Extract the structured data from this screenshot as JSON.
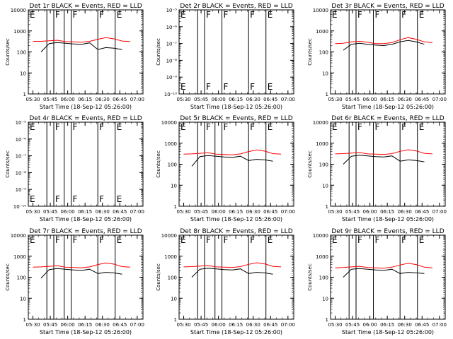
{
  "figure": {
    "xticks": [
      "05:30",
      "05:45",
      "06:00",
      "06:15",
      "06:30",
      "06:45",
      "07:00"
    ],
    "xlabel": "Start Time (18-Sep-12 05:26:00)",
    "ylabel": "Counts/sec",
    "colors": {
      "events": "#000000",
      "lld": "#ff0000",
      "axes": "#000000"
    }
  },
  "chart_data": [
    {
      "type": "line",
      "title": "Det 1r BLACK = Events, RED = LLD",
      "xlabel": "Start Time (18-Sep-12 05:26:00)",
      "ylabel": "Counts/sec",
      "scale": "log",
      "ylim": [
        1,
        10000
      ],
      "yticks": [
        "1",
        "10",
        "100",
        "1000",
        "10000"
      ],
      "x": [
        "05:30",
        "05:37",
        "05:44",
        "05:51",
        "05:58",
        "06:05",
        "06:12",
        "06:19",
        "06:26",
        "06:33",
        "06:40",
        "06:47",
        "06:54"
      ],
      "series": [
        {
          "name": "BLACK = Events",
          "values": [
            null,
            100,
            250,
            280,
            260,
            240,
            230,
            270,
            130,
            160,
            150,
            130,
            null
          ]
        },
        {
          "name": "RED = LLD",
          "values": [
            320,
            320,
            340,
            360,
            310,
            300,
            290,
            320,
            400,
            480,
            420,
            330,
            310
          ]
        }
      ],
      "markers": [
        {
          "x": "05:26",
          "label": "E"
        },
        {
          "x": "05:42",
          "label": ""
        },
        {
          "x": "05:48",
          "label": "F"
        },
        {
          "x": "05:57",
          "label": ""
        },
        {
          "x": "06:03",
          "label": "F"
        },
        {
          "x": "06:26",
          "label": "F"
        },
        {
          "x": "06:41",
          "label": "E"
        }
      ]
    },
    {
      "type": "line",
      "title": "Det 2r BLACK = Events, RED = LLD",
      "xlabel": "Start Time (18-Sep-12 05:26:00)",
      "ylabel": "Counts/sec",
      "scale": "log",
      "ylim": [
        1e-10,
        1e-05
      ],
      "yticks": [
        "10⁻¹⁰",
        "10⁻⁹",
        "10⁻⁸",
        "10⁻⁷",
        "10⁻⁶",
        "10⁻⁵"
      ],
      "series": [],
      "markers": [
        {
          "x": "05:26",
          "label": "E"
        },
        {
          "x": "05:42",
          "label": ""
        },
        {
          "x": "05:48",
          "label": "F"
        },
        {
          "x": "06:03",
          "label": "F"
        },
        {
          "x": "06:26",
          "label": "F"
        },
        {
          "x": "06:41",
          "label": "E"
        }
      ]
    },
    {
      "type": "line",
      "title": "Det 3r BLACK = Events, RED = LLD",
      "xlabel": "Start Time (18-Sep-12 05:26:00)",
      "ylabel": "Counts/sec",
      "scale": "log",
      "ylim": [
        1,
        10000
      ],
      "yticks": [
        "1",
        "10",
        "100",
        "1000",
        "10000"
      ],
      "x": [
        "05:30",
        "05:37",
        "05:44",
        "05:51",
        "05:58",
        "06:05",
        "06:12",
        "06:19",
        "06:26",
        "06:33",
        "06:40",
        "06:47",
        "06:54"
      ],
      "series": [
        {
          "name": "BLACK = Events",
          "values": [
            null,
            120,
            230,
            260,
            230,
            210,
            200,
            230,
            300,
            350,
            300,
            230,
            null
          ]
        },
        {
          "name": "RED = LLD",
          "values": [
            250,
            260,
            300,
            320,
            290,
            250,
            250,
            280,
            380,
            480,
            400,
            300,
            280
          ]
        }
      ],
      "markers": [
        {
          "x": "05:26",
          "label": "E"
        },
        {
          "x": "05:42",
          "label": ""
        },
        {
          "x": "05:48",
          "label": "F"
        },
        {
          "x": "06:03",
          "label": "F"
        },
        {
          "x": "06:26",
          "label": "F"
        },
        {
          "x": "06:41",
          "label": "E"
        }
      ]
    },
    {
      "type": "line",
      "title": "Det 4r BLACK = Events, RED = LLD",
      "xlabel": "Start Time (18-Sep-12 05:26:00)",
      "ylabel": "Counts/sec",
      "scale": "log",
      "ylim": [
        1e-10,
        1e-05
      ],
      "yticks": [
        "10⁻¹⁰",
        "10⁻⁹",
        "10⁻⁸",
        "10⁻⁷",
        "10⁻⁶",
        "10⁻⁵"
      ],
      "series": [],
      "markers": [
        {
          "x": "05:26",
          "label": "E"
        },
        {
          "x": "05:42",
          "label": ""
        },
        {
          "x": "05:48",
          "label": "F"
        },
        {
          "x": "05:57",
          "label": ""
        },
        {
          "x": "06:03",
          "label": "F"
        },
        {
          "x": "06:26",
          "label": "F"
        },
        {
          "x": "06:41",
          "label": "E"
        }
      ]
    },
    {
      "type": "line",
      "title": "Det 5r BLACK = Events, RED = LLD",
      "xlabel": "Start Time (18-Sep-12 05:26:00)",
      "ylabel": "Counts/sec",
      "scale": "log",
      "ylim": [
        1,
        10000
      ],
      "yticks": [
        "1",
        "10",
        "100",
        "1000",
        "10000"
      ],
      "x": [
        "05:30",
        "05:37",
        "05:44",
        "05:51",
        "05:58",
        "06:05",
        "06:12",
        "06:19",
        "06:26",
        "06:33",
        "06:40",
        "06:47",
        "06:54"
      ],
      "series": [
        {
          "name": "BLACK = Events",
          "values": [
            null,
            80,
            230,
            260,
            240,
            220,
            210,
            240,
            150,
            170,
            160,
            140,
            null
          ]
        },
        {
          "name": "RED = LLD",
          "values": [
            300,
            310,
            330,
            350,
            300,
            290,
            280,
            310,
            400,
            480,
            420,
            320,
            300
          ]
        }
      ],
      "markers": [
        {
          "x": "05:26",
          "label": "E"
        },
        {
          "x": "05:42",
          "label": ""
        },
        {
          "x": "05:48",
          "label": "F"
        },
        {
          "x": "05:57",
          "label": ""
        },
        {
          "x": "06:03",
          "label": "F"
        },
        {
          "x": "06:26",
          "label": "F"
        },
        {
          "x": "06:41",
          "label": "E"
        }
      ]
    },
    {
      "type": "line",
      "title": "Det 6r BLACK = Events, RED = LLD",
      "xlabel": "Start Time (18-Sep-12 05:26:00)",
      "ylabel": "Counts/sec",
      "scale": "log",
      "ylim": [
        1,
        10000
      ],
      "yticks": [
        "1",
        "10",
        "100",
        "1000",
        "10000"
      ],
      "x": [
        "05:30",
        "05:37",
        "05:44",
        "05:51",
        "05:58",
        "06:05",
        "06:12",
        "06:19",
        "06:26",
        "06:33",
        "06:40",
        "06:47",
        "06:54"
      ],
      "series": [
        {
          "name": "BLACK = Events",
          "values": [
            null,
            100,
            240,
            270,
            250,
            230,
            220,
            250,
            140,
            160,
            150,
            130,
            null
          ]
        },
        {
          "name": "RED = LLD",
          "values": [
            310,
            320,
            340,
            360,
            310,
            300,
            290,
            320,
            410,
            490,
            430,
            330,
            310
          ]
        }
      ],
      "markers": [
        {
          "x": "05:26",
          "label": "E"
        },
        {
          "x": "05:42",
          "label": ""
        },
        {
          "x": "05:48",
          "label": "F"
        },
        {
          "x": "06:03",
          "label": "F"
        },
        {
          "x": "06:26",
          "label": "F"
        },
        {
          "x": "06:41",
          "label": "E"
        }
      ]
    },
    {
      "type": "line",
      "title": "Det 7r BLACK = Events, RED = LLD",
      "xlabel": "Start Time (18-Sep-12 05:26:00)",
      "ylabel": "Counts/sec",
      "scale": "log",
      "ylim": [
        1,
        10000
      ],
      "yticks": [
        "1",
        "10",
        "100",
        "1000",
        "10000"
      ],
      "x": [
        "05:30",
        "05:37",
        "05:44",
        "05:51",
        "05:58",
        "06:05",
        "06:12",
        "06:19",
        "06:26",
        "06:33",
        "06:40",
        "06:47",
        "06:54"
      ],
      "series": [
        {
          "name": "BLACK = Events",
          "values": [
            null,
            90,
            230,
            260,
            240,
            220,
            210,
            240,
            150,
            170,
            160,
            140,
            null
          ]
        },
        {
          "name": "RED = LLD",
          "values": [
            300,
            310,
            330,
            350,
            300,
            290,
            280,
            310,
            400,
            480,
            420,
            320,
            300
          ]
        }
      ],
      "markers": [
        {
          "x": "05:26",
          "label": "E"
        },
        {
          "x": "05:42",
          "label": ""
        },
        {
          "x": "05:48",
          "label": "F"
        },
        {
          "x": "05:57",
          "label": ""
        },
        {
          "x": "06:03",
          "label": "F"
        },
        {
          "x": "06:26",
          "label": "F"
        },
        {
          "x": "06:41",
          "label": "E"
        }
      ]
    },
    {
      "type": "line",
      "title": "Det 8r BLACK = Events, RED = LLD",
      "xlabel": "Start Time (18-Sep-12 05:26:00)",
      "ylabel": "Counts/sec",
      "scale": "log",
      "ylim": [
        1,
        10000
      ],
      "yticks": [
        "1",
        "10",
        "100",
        "1000",
        "10000"
      ],
      "x": [
        "05:30",
        "05:37",
        "05:44",
        "05:51",
        "05:58",
        "06:05",
        "06:12",
        "06:19",
        "06:26",
        "06:33",
        "06:40",
        "06:47",
        "06:54"
      ],
      "series": [
        {
          "name": "BLACK = Events",
          "values": [
            null,
            100,
            240,
            270,
            250,
            230,
            220,
            250,
            150,
            170,
            160,
            140,
            null
          ]
        },
        {
          "name": "RED = LLD",
          "values": [
            310,
            320,
            340,
            360,
            310,
            300,
            290,
            320,
            410,
            490,
            430,
            330,
            310
          ]
        }
      ],
      "markers": [
        {
          "x": "05:26",
          "label": "E"
        },
        {
          "x": "05:42",
          "label": ""
        },
        {
          "x": "05:48",
          "label": "F"
        },
        {
          "x": "05:57",
          "label": ""
        },
        {
          "x": "06:03",
          "label": "F"
        },
        {
          "x": "06:26",
          "label": "F"
        },
        {
          "x": "06:41",
          "label": "E"
        }
      ]
    },
    {
      "type": "line",
      "title": "Det 9r BLACK = Events, RED = LLD",
      "xlabel": "Start Time (18-Sep-12 05:26:00)",
      "ylabel": "Counts/sec",
      "scale": "log",
      "ylim": [
        1,
        10000
      ],
      "yticks": [
        "1",
        "10",
        "100",
        "1000",
        "10000"
      ],
      "x": [
        "05:30",
        "05:37",
        "05:44",
        "05:51",
        "05:58",
        "06:05",
        "06:12",
        "06:19",
        "06:26",
        "06:33",
        "06:40",
        "06:47",
        "06:54"
      ],
      "series": [
        {
          "name": "BLACK = Events",
          "values": [
            null,
            100,
            240,
            260,
            240,
            220,
            210,
            240,
            150,
            170,
            160,
            150,
            null
          ]
        },
        {
          "name": "RED = LLD",
          "values": [
            280,
            290,
            310,
            330,
            290,
            280,
            270,
            300,
            380,
            460,
            400,
            300,
            280
          ]
        }
      ],
      "markers": [
        {
          "x": "05:26",
          "label": "E"
        },
        {
          "x": "05:42",
          "label": ""
        },
        {
          "x": "05:48",
          "label": "F"
        },
        {
          "x": "06:03",
          "label": "F"
        },
        {
          "x": "06:26",
          "label": "F"
        },
        {
          "x": "06:41",
          "label": "E"
        }
      ]
    }
  ]
}
